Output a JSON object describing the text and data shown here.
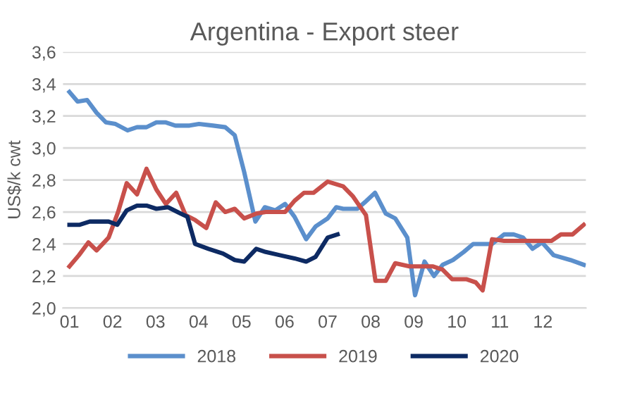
{
  "chart_data": {
    "type": "line",
    "title": "Argentina - Export steer",
    "ylabel": "US$/k cwt",
    "xlim": [
      0.85,
      13
    ],
    "xticks": [
      {
        "value": 1,
        "label": "01"
      },
      {
        "value": 2,
        "label": "02"
      },
      {
        "value": 3,
        "label": "03"
      },
      {
        "value": 4,
        "label": "04"
      },
      {
        "value": 5,
        "label": "05"
      },
      {
        "value": 6,
        "label": "06"
      },
      {
        "value": 7,
        "label": "07"
      },
      {
        "value": 8,
        "label": "08"
      },
      {
        "value": 9,
        "label": "09"
      },
      {
        "value": 10,
        "label": "10"
      },
      {
        "value": 11,
        "label": "11"
      },
      {
        "value": 12,
        "label": "12"
      }
    ],
    "ylim": [
      2.0,
      3.6
    ],
    "yticks": [
      {
        "value": 2.0,
        "label": "2,0"
      },
      {
        "value": 2.2,
        "label": "2,2"
      },
      {
        "value": 2.4,
        "label": "2,4"
      },
      {
        "value": 2.6,
        "label": "2,6"
      },
      {
        "value": 2.8,
        "label": "2,8"
      },
      {
        "value": 3.0,
        "label": "3,0"
      },
      {
        "value": 3.2,
        "label": "3,2"
      },
      {
        "value": 3.4,
        "label": "3,4"
      },
      {
        "value": 3.6,
        "label": "3,6"
      }
    ],
    "grid": "y",
    "legend": "bottom",
    "marker": "none",
    "line_style": "solid",
    "series": [
      {
        "name": "2018",
        "color": "#5b8fcc",
        "x": [
          1.0,
          1.19,
          1.41,
          1.63,
          1.85,
          2.07,
          2.35,
          2.57,
          2.79,
          3.02,
          3.24,
          3.46,
          3.79,
          4.01,
          4.34,
          4.62,
          4.84,
          5.06,
          5.32,
          5.54,
          5.78,
          6.01,
          6.23,
          6.5,
          6.72,
          7.0,
          7.2,
          7.36,
          7.69,
          7.86,
          8.1,
          8.35,
          8.57,
          8.85,
          9.03,
          9.25,
          9.47,
          9.67,
          9.91,
          10.16,
          10.38,
          10.82,
          11.1,
          11.32,
          11.54,
          11.76,
          11.98,
          12.25,
          12.64,
          12.95
        ],
        "values": [
          3.35,
          3.29,
          3.3,
          3.22,
          3.16,
          3.15,
          3.11,
          3.13,
          3.13,
          3.16,
          3.16,
          3.14,
          3.14,
          3.15,
          3.14,
          3.13,
          3.08,
          2.85,
          2.54,
          2.63,
          2.61,
          2.65,
          2.57,
          2.43,
          2.51,
          2.56,
          2.63,
          2.62,
          2.62,
          2.66,
          2.72,
          2.59,
          2.56,
          2.44,
          2.08,
          2.29,
          2.2,
          2.27,
          2.3,
          2.35,
          2.4,
          2.4,
          2.46,
          2.46,
          2.44,
          2.37,
          2.41,
          2.33,
          2.3,
          2.27
        ]
      },
      {
        "name": "2019",
        "color": "#c8504b",
        "x": [
          1.0,
          1.22,
          1.44,
          1.63,
          1.91,
          2.13,
          2.33,
          2.57,
          2.79,
          3.02,
          3.24,
          3.48,
          3.7,
          3.92,
          4.18,
          4.4,
          4.62,
          4.84,
          5.06,
          5.34,
          5.56,
          6.01,
          6.23,
          6.45,
          6.67,
          7.0,
          7.36,
          7.58,
          7.89,
          8.11,
          8.35,
          8.57,
          8.9,
          9.45,
          9.67,
          9.89,
          10.22,
          10.44,
          10.6,
          10.82,
          11.1,
          11.98,
          12.2,
          12.42,
          12.69,
          12.95
        ],
        "values": [
          2.26,
          2.33,
          2.41,
          2.36,
          2.44,
          2.6,
          2.78,
          2.71,
          2.87,
          2.74,
          2.65,
          2.72,
          2.58,
          2.55,
          2.5,
          2.66,
          2.6,
          2.62,
          2.56,
          2.59,
          2.6,
          2.6,
          2.67,
          2.72,
          2.72,
          2.79,
          2.76,
          2.7,
          2.58,
          2.17,
          2.17,
          2.28,
          2.26,
          2.26,
          2.24,
          2.18,
          2.18,
          2.16,
          2.11,
          2.43,
          2.42,
          2.42,
          2.42,
          2.46,
          2.46,
          2.52
        ]
      },
      {
        "name": "2020",
        "color": "#0d2a63",
        "x": [
          1.0,
          1.24,
          1.47,
          1.91,
          2.11,
          2.33,
          2.57,
          2.79,
          3.02,
          3.29,
          3.51,
          3.74,
          3.92,
          4.23,
          4.57,
          4.84,
          5.06,
          5.34,
          5.56,
          5.89,
          6.23,
          6.5,
          6.72,
          7.0,
          7.23
        ],
        "values": [
          2.52,
          2.52,
          2.54,
          2.54,
          2.52,
          2.61,
          2.64,
          2.64,
          2.62,
          2.63,
          2.6,
          2.57,
          2.4,
          2.37,
          2.34,
          2.3,
          2.29,
          2.37,
          2.35,
          2.33,
          2.31,
          2.29,
          2.32,
          2.44,
          2.46
        ]
      }
    ]
  }
}
